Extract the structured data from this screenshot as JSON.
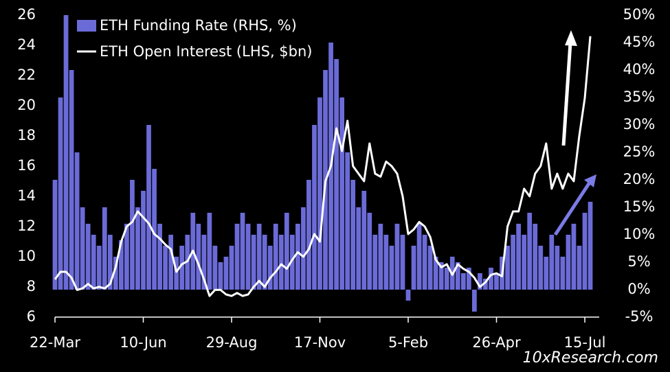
{
  "chart_data": {
    "type": "bar-line",
    "categories": [
      "22-Mar",
      null,
      null,
      null,
      null,
      null,
      null,
      null,
      null,
      null,
      null,
      null,
      null,
      null,
      null,
      null,
      "10-Jun",
      null,
      null,
      null,
      null,
      null,
      null,
      null,
      null,
      null,
      null,
      null,
      null,
      null,
      null,
      null,
      "29-Aug",
      null,
      null,
      null,
      null,
      null,
      null,
      null,
      null,
      null,
      null,
      null,
      null,
      null,
      null,
      null,
      "17-Nov",
      null,
      null,
      null,
      null,
      null,
      null,
      null,
      null,
      null,
      null,
      null,
      null,
      null,
      null,
      null,
      "5-Feb",
      null,
      null,
      null,
      null,
      null,
      null,
      null,
      null,
      null,
      null,
      null,
      null,
      null,
      null,
      null,
      "26-Apr",
      null,
      null,
      null,
      null,
      null,
      null,
      null,
      null,
      null,
      null,
      null,
      null,
      null,
      null,
      null,
      "15-Jul",
      null
    ],
    "series": [
      {
        "name": "ETH Funding Rate (RHS, %)",
        "color": "#6b6bd8",
        "axis": "y2",
        "kind": "bar",
        "values": [
          20,
          35,
          50,
          40,
          25,
          15,
          12,
          10,
          8,
          15,
          10,
          6,
          9,
          12,
          20,
          15,
          18,
          30,
          22,
          12,
          8,
          10,
          6,
          8,
          10,
          14,
          12,
          10,
          14,
          8,
          5,
          6,
          8,
          12,
          14,
          12,
          10,
          12,
          10,
          8,
          12,
          10,
          14,
          10,
          12,
          15,
          20,
          30,
          35,
          40,
          45,
          42,
          35,
          25,
          20,
          15,
          18,
          14,
          10,
          12,
          10,
          8,
          12,
          10,
          -2,
          8,
          12,
          10,
          8,
          6,
          5,
          4,
          6,
          5,
          3,
          4,
          -4,
          3,
          2,
          4,
          3,
          6,
          8,
          10,
          12,
          10,
          14,
          12,
          8,
          6,
          10,
          8,
          6,
          10,
          12,
          8,
          14,
          16
        ]
      },
      {
        "name": "ETH Open Interest (LHS, $bn)",
        "color": "#ffffff",
        "kind": "line",
        "values": [
          8.5,
          9.0,
          9.0,
          8.6,
          7.8,
          7.9,
          8.2,
          7.9,
          8.0,
          7.9,
          8.2,
          9.3,
          11.0,
          12.0,
          12.3,
          13.0,
          12.6,
          12.2,
          11.5,
          11.2,
          10.8,
          10.5,
          9.0,
          9.5,
          9.7,
          10.4,
          9.5,
          8.5,
          7.4,
          7.8,
          7.8,
          7.5,
          7.4,
          7.6,
          7.4,
          7.5,
          8.0,
          8.4,
          8.0,
          8.6,
          9.0,
          9.5,
          9.2,
          9.8,
          10.3,
          10.0,
          10.5,
          11.5,
          11.0,
          15.0,
          16.0,
          18.5,
          17.0,
          19.0,
          16.0,
          15.5,
          15.0,
          17.5,
          15.5,
          15.3,
          16.3,
          16.0,
          15.5,
          14.0,
          11.5,
          11.8,
          12.3,
          12.0,
          11.3,
          9.8,
          9.3,
          9.5,
          8.8,
          9.5,
          9.2,
          9.0,
          8.6,
          8.0,
          8.3,
          8.8,
          8.9,
          8.7,
          12.0,
          13.0,
          13.0,
          14.5,
          14.0,
          15.5,
          16.0,
          17.5,
          14.5,
          15.5,
          14.5,
          15.5,
          15.0,
          18.0,
          20.5,
          24.6
        ]
      }
    ],
    "ylim": [
      6,
      26
    ],
    "yticks": [
      6,
      8,
      10,
      12,
      14,
      16,
      18,
      20,
      22,
      24,
      26
    ],
    "y2lim": [
      -5,
      50
    ],
    "y2ticks": [
      {
        "value": -5,
        "label": "-5%"
      },
      {
        "value": 0,
        "label": "0%"
      },
      {
        "value": 5,
        "label": "5%"
      },
      {
        "value": 10,
        "label": "10%"
      },
      {
        "value": 15,
        "label": "15%"
      },
      {
        "value": 20,
        "label": "20%"
      },
      {
        "value": 25,
        "label": "25%"
      },
      {
        "value": 30,
        "label": "30%"
      },
      {
        "value": 35,
        "label": "35%"
      },
      {
        "value": 40,
        "label": "40%"
      },
      {
        "value": 45,
        "label": "45%"
      },
      {
        "value": 50,
        "label": "50%"
      }
    ],
    "legend": "upper left",
    "source": "10xResearch.com"
  }
}
